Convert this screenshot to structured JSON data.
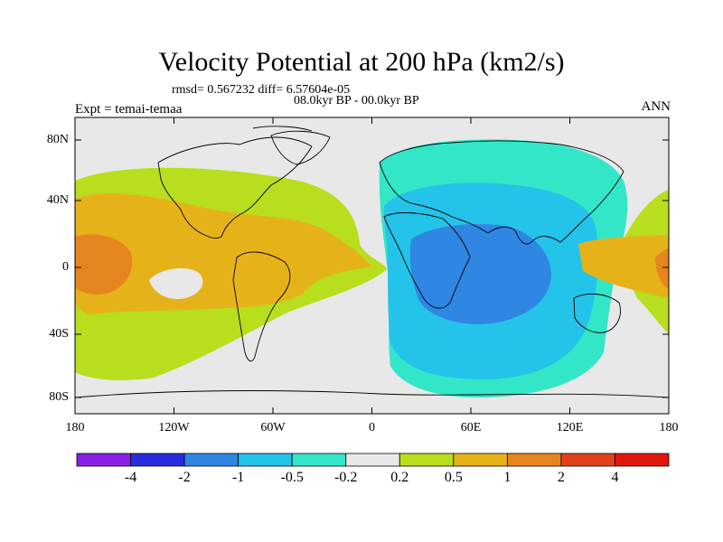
{
  "title": "Velocity Potential at 200 hPa (km2/s)",
  "stats": "rmsd= 0.567232  diff= 6.57604e-05",
  "period": "08.0kyr BP - 00.0kyr BP",
  "experiment": "Expt = temai-temaa",
  "season": "ANN",
  "lat_ticks": [
    "80N",
    "40N",
    "0",
    "40S",
    "80S"
  ],
  "lon_ticks": [
    "180",
    "120W",
    "60W",
    "0",
    "60E",
    "120E",
    "180"
  ],
  "colorbar": {
    "labels": [
      "-4",
      "-2",
      "-1",
      "-0.5",
      "-0.2",
      "0.2",
      "0.5",
      "1",
      "2",
      "4"
    ],
    "colors": [
      "#8a1fe6",
      "#2a2ae0",
      "#2f86e3",
      "#24c3e9",
      "#33e6c8",
      "#e8e8e8",
      "#b8de1e",
      "#e6b21a",
      "#e6851d",
      "#e0411b",
      "#e3170f"
    ]
  }
}
